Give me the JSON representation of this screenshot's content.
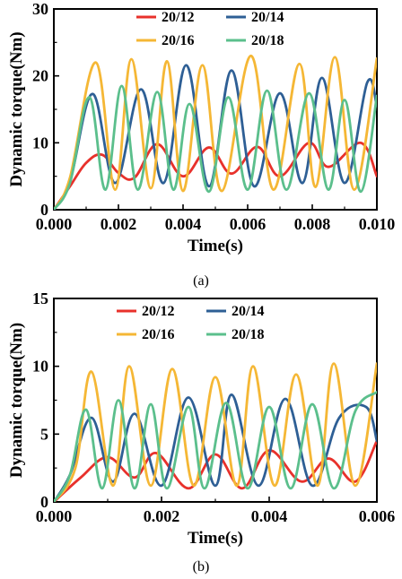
{
  "chart_data": [
    {
      "type": "line",
      "xlabel": "Time(s)",
      "ylabel": "Dynamic torque(Nm)",
      "caption": "(a)",
      "xlim": [
        0,
        0.01
      ],
      "ylim": [
        0,
        30
      ],
      "xticks": [
        "0.000",
        "0.002",
        "0.004",
        "0.006",
        "0.008",
        "0.010"
      ],
      "yticks": [
        "0",
        "10",
        "20",
        "30"
      ],
      "legend_position": "top",
      "series": [
        {
          "name": "20/12",
          "color": "#e8312b",
          "x": [
            0,
            0.0005,
            0.001,
            0.0015,
            0.002,
            0.0025,
            0.0032,
            0.004,
            0.0048,
            0.0055,
            0.0063,
            0.007,
            0.0079,
            0.0085,
            0.0095,
            0.01
          ],
          "y": [
            0,
            3.5,
            7.0,
            8.2,
            5.5,
            4.8,
            9.8,
            5.0,
            9.3,
            5.4,
            9.4,
            5.0,
            10.0,
            6.4,
            10.0,
            5.0
          ]
        },
        {
          "name": "20/14",
          "color": "#2e5f95",
          "x": [
            0,
            0.0005,
            0.0012,
            0.0019,
            0.0027,
            0.0034,
            0.0041,
            0.0048,
            0.0055,
            0.0062,
            0.007,
            0.0077,
            0.0083,
            0.009,
            0.0097,
            0.01
          ],
          "y": [
            0,
            4.2,
            17.3,
            4.0,
            18.0,
            4.0,
            21.6,
            3.5,
            20.8,
            3.5,
            17.4,
            4.0,
            19.7,
            4.0,
            19.0,
            15.5
          ]
        },
        {
          "name": "20/16",
          "color": "#f5b735",
          "x": [
            0,
            0.0005,
            0.0013,
            0.0019,
            0.0024,
            0.003,
            0.0035,
            0.004,
            0.0046,
            0.0052,
            0.0061,
            0.0068,
            0.0076,
            0.0081,
            0.0087,
            0.0093,
            0.01
          ],
          "y": [
            0,
            4.8,
            22.0,
            3.0,
            22.5,
            3.2,
            22.2,
            2.8,
            21.6,
            2.8,
            23.0,
            3.0,
            21.8,
            3.4,
            22.8,
            3.0,
            22.6
          ]
        },
        {
          "name": "20/18",
          "color": "#5bbf8c",
          "x": [
            0,
            0.0005,
            0.0011,
            0.0016,
            0.0021,
            0.0026,
            0.0032,
            0.0037,
            0.0042,
            0.0048,
            0.0054,
            0.006,
            0.0066,
            0.0072,
            0.0079,
            0.0085,
            0.009,
            0.0095,
            0.01
          ],
          "y": [
            0,
            4.0,
            16.8,
            3.0,
            18.5,
            3.0,
            17.6,
            3.0,
            15.8,
            2.7,
            16.8,
            3.0,
            17.8,
            3.0,
            17.4,
            3.0,
            16.4,
            2.7,
            17.0
          ]
        }
      ]
    },
    {
      "type": "line",
      "xlabel": "Time(s)",
      "ylabel": "Dynamic torque(Nm)",
      "caption": "(b)",
      "xlim": [
        0,
        0.006
      ],
      "ylim": [
        0,
        15
      ],
      "xticks": [
        "0.000",
        "0.002",
        "0.004",
        "0.006"
      ],
      "yticks": [
        "0",
        "5",
        "10",
        "15"
      ],
      "legend_position": "top",
      "series": [
        {
          "name": "20/12",
          "color": "#e8312b",
          "x": [
            0,
            0.0005,
            0.001,
            0.0015,
            0.0019,
            0.0025,
            0.003,
            0.0035,
            0.004,
            0.0046,
            0.0051,
            0.0056,
            0.006
          ],
          "y": [
            0,
            1.8,
            3.3,
            1.8,
            3.6,
            1.0,
            3.5,
            1.0,
            3.8,
            1.5,
            3.2,
            1.5,
            4.5
          ]
        },
        {
          "name": "20/14",
          "color": "#2e5f95",
          "x": [
            0,
            0.0003,
            0.0007,
            0.0011,
            0.0015,
            0.002,
            0.0025,
            0.003,
            0.0033,
            0.0038,
            0.0043,
            0.0048,
            0.0053,
            0.0058,
            0.006
          ],
          "y": [
            0,
            2.0,
            6.2,
            1.5,
            6.5,
            1.2,
            7.7,
            1.2,
            7.9,
            1.2,
            7.6,
            1.2,
            6.2,
            7.0,
            4.5
          ]
        },
        {
          "name": "20/16",
          "color": "#f5b735",
          "x": [
            0,
            0.0004,
            0.0007,
            0.0011,
            0.0014,
            0.0018,
            0.0022,
            0.0026,
            0.003,
            0.0034,
            0.0037,
            0.0041,
            0.0045,
            0.0049,
            0.0052,
            0.0056,
            0.006
          ],
          "y": [
            0,
            2.5,
            9.6,
            1.2,
            10.0,
            1.2,
            9.8,
            1.2,
            9.2,
            1.2,
            10.0,
            1.2,
            9.4,
            1.2,
            10.2,
            1.2,
            10.2
          ]
        },
        {
          "name": "20/18",
          "color": "#5bbf8c",
          "x": [
            0,
            0.0003,
            0.0006,
            0.0009,
            0.0012,
            0.0015,
            0.0018,
            0.0021,
            0.0025,
            0.0028,
            0.0032,
            0.0036,
            0.004,
            0.0044,
            0.0048,
            0.0052,
            0.0056,
            0.006
          ],
          "y": [
            0,
            2.0,
            6.8,
            1.0,
            7.5,
            1.0,
            7.2,
            1.0,
            7.0,
            1.0,
            7.3,
            1.0,
            7.0,
            1.0,
            7.2,
            1.0,
            6.7,
            8.1
          ]
        }
      ]
    }
  ]
}
